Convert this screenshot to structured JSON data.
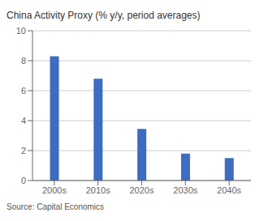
{
  "chart_data": {
    "type": "bar",
    "title": "China Activity Proxy (% y/y, period averages)",
    "categories": [
      "2000s",
      "2010s",
      "2020s",
      "2030s",
      "2040s"
    ],
    "values": [
      8.3,
      6.8,
      3.45,
      1.8,
      1.5
    ],
    "color": "#3d6cc0",
    "ylim": [
      0,
      10
    ],
    "yticks": [
      0,
      2,
      4,
      6,
      8,
      10
    ],
    "grid": true,
    "source": "Source: Capital Economics"
  }
}
